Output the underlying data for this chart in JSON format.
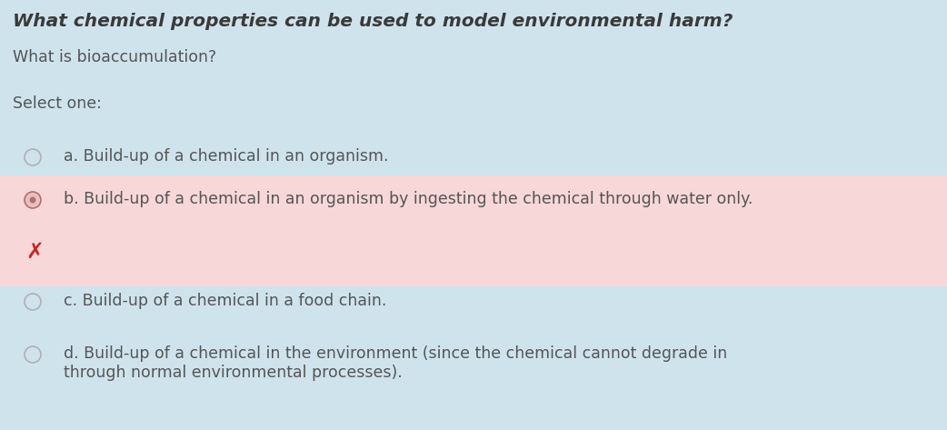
{
  "bg_color": "#cfe3ed",
  "title": "What chemical properties can be used to model environmental harm?",
  "subtitle": "What is bioaccumulation?",
  "select_label": "Select one:",
  "options": [
    {
      "label": "a. Build-up of a chemical in an organism.",
      "selected": false,
      "highlighted": false
    },
    {
      "label": "b. Build-up of a chemical in an organism by ingesting the chemical through water only.",
      "selected": true,
      "highlighted": true
    },
    {
      "label": "c. Build-up of a chemical in a food chain.",
      "selected": false,
      "highlighted": false
    },
    {
      "label": "d. Build-up of a chemical in the environment (since the chemical cannot degrade in\nthrough normal environmental processes).",
      "selected": false,
      "highlighted": false
    }
  ],
  "highlight_bg": "#f7d7d7",
  "radio_color_unselected": "#b0b0b0",
  "radio_color_selected": "#b07070",
  "radio_fill_unselected": "#cfe3ed",
  "radio_fill_selected": "#e8c0c0",
  "text_color": "#555555",
  "title_color": "#3a3a3a",
  "cross_color": "#cc2222",
  "title_fontsize": 14.5,
  "body_fontsize": 12.5,
  "label_fontsize": 12.5,
  "fig_width": 10.42,
  "fig_height": 4.73,
  "dpi": 100
}
